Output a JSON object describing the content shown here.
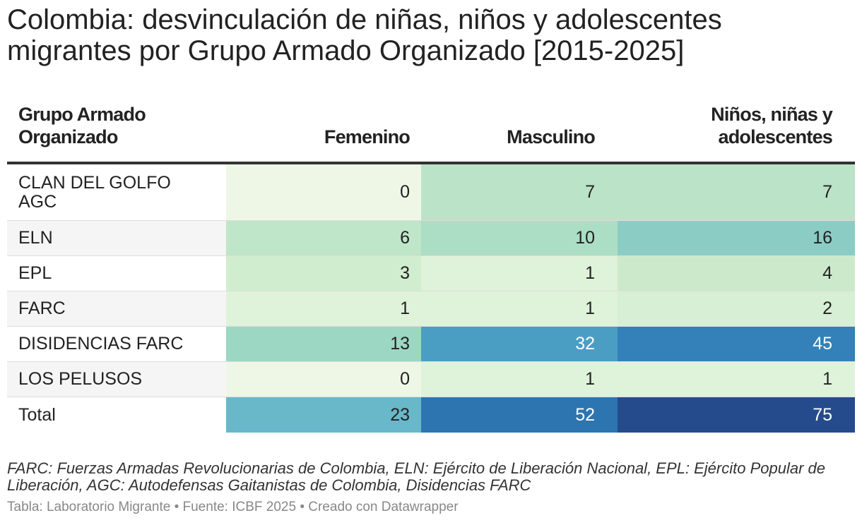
{
  "title": "Colombia: desvinculación de niñas, niños y adolescentes migrantes por Grupo Armado Organizado [2015-2025]",
  "chart_data": {
    "type": "table",
    "columns": [
      "Grupo Armado Organizado",
      "Femenino",
      "Masculino",
      "Niños, niñas y adolescentes"
    ],
    "rows": [
      {
        "group": "CLAN DEL GOLFO AGC",
        "femenino": 0,
        "masculino": 7,
        "total": 7
      },
      {
        "group": "ELN",
        "femenino": 6,
        "masculino": 10,
        "total": 16
      },
      {
        "group": "EPL",
        "femenino": 3,
        "masculino": 1,
        "total": 4
      },
      {
        "group": "FARC",
        "femenino": 1,
        "masculino": 1,
        "total": 2
      },
      {
        "group": "DISIDENCIAS FARC",
        "femenino": 13,
        "masculino": 32,
        "total": 45
      },
      {
        "group": "LOS PELUSOS",
        "femenino": 0,
        "masculino": 1,
        "total": 1
      },
      {
        "group": "Total",
        "femenino": 23,
        "masculino": 52,
        "total": 75
      }
    ],
    "color_scale": {
      "stops": [
        "#eef7e6",
        "#cdebcb",
        "#a2dac2",
        "#65b6c9",
        "#3a8ebf",
        "#2a6fae",
        "#254b8c"
      ],
      "domain": [
        0,
        75
      ]
    }
  },
  "header": {
    "col0": "Grupo Armado Organizado",
    "col1": "Femenino",
    "col2": "Masculino",
    "col3": "Niños, niñas y adolescentes"
  },
  "footnote": "FARC: Fuerzas Armadas Revolucionarias de Colombia, ELN: Ejército de Liberación Nacional, EPL: Ejército Popular de Liberación, AGC: Autodefensas Gaitanistas de Colombia, Disidencias FARC",
  "source": "Tabla: Laboratorio Migrante • Fuente: ICBF 2025 • Creado con Datawrapper"
}
